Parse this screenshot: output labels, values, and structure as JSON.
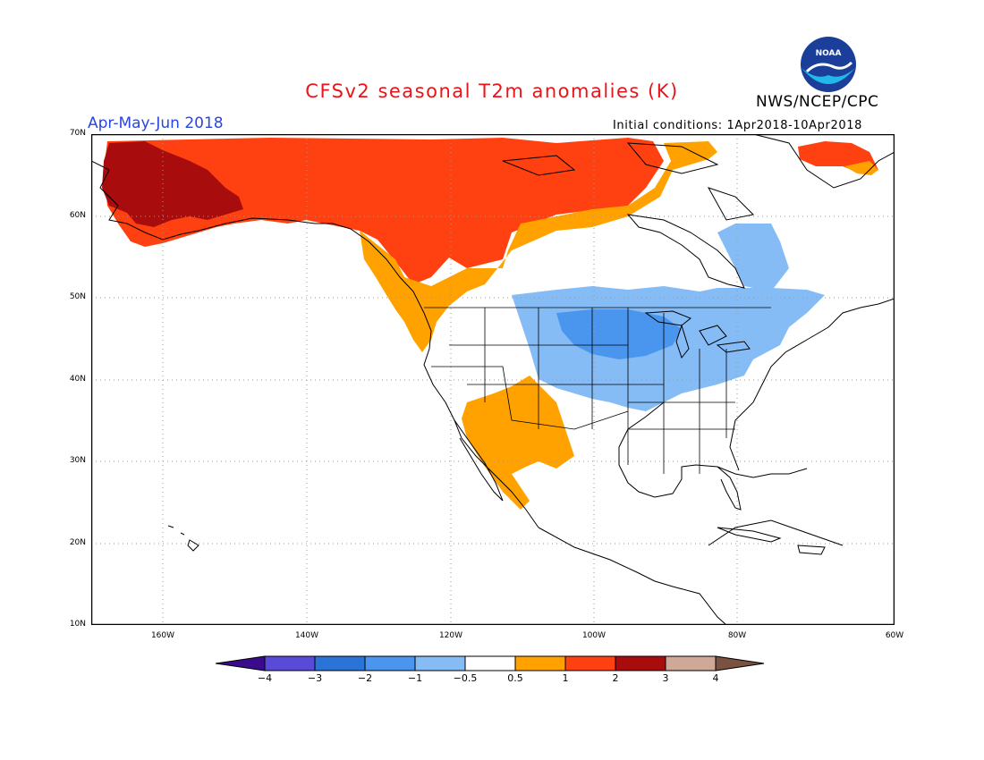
{
  "header": {
    "title": "CFSv2 seasonal T2m anomalies (K)",
    "agency": "NWS/NCEP/CPC",
    "logo_text": "NOAA",
    "season": "Apr-May-Jun 2018",
    "initial_conditions": "Initial conditions: 1Apr2018-10Apr2018"
  },
  "axes": {
    "lat_labels": [
      "70N",
      "60N",
      "50N",
      "40N",
      "30N",
      "20N",
      "10N"
    ],
    "lon_labels": [
      "160W",
      "140W",
      "120W",
      "100W",
      "80W",
      "60W"
    ],
    "lat_range": [
      10,
      70
    ],
    "lon_range": [
      -172,
      -60
    ]
  },
  "colorbar": {
    "labels": [
      "-4",
      "-3",
      "-2",
      "-1",
      "-0.5",
      "0.5",
      "1",
      "2",
      "3",
      "4"
    ],
    "colors": [
      "#3a0c8c",
      "#5a4ad8",
      "#2a74d8",
      "#4a96ee",
      "#86bcf6",
      "#ffffff",
      "#ffa200",
      "#ff4010",
      "#a80c0c",
      "#d0a898",
      "#7a5242"
    ]
  },
  "colors": {
    "title": "#e8141a",
    "season": "#2a46e0",
    "coast": "#000000",
    "grid": "#9a9a9a"
  },
  "anomaly_regions": [
    {
      "category": "2 to 3",
      "color": "#a80c0c",
      "area": "Alaska west"
    },
    {
      "category": "1 to 2",
      "color": "#ff4010",
      "area": "Alaska and northwest Canada"
    },
    {
      "category": "1 to 2",
      "color": "#ff4010",
      "area": "Greenland southwest"
    },
    {
      "category": "0.5 to 1",
      "color": "#ffa200",
      "area": "Pacific northwest coast"
    },
    {
      "category": "0.5 to 1",
      "color": "#ffa200",
      "area": "Southwest US and northwest Mexico"
    },
    {
      "category": "-1 to -0.5",
      "color": "#86bcf6",
      "area": "Northern plains, Great Lakes, northeast"
    },
    {
      "category": "-2 to -1",
      "color": "#4a96ee",
      "area": "Upper midwest"
    },
    {
      "category": "-1 to -0.5",
      "color": "#86bcf6",
      "area": "Hudson Bay east"
    }
  ]
}
